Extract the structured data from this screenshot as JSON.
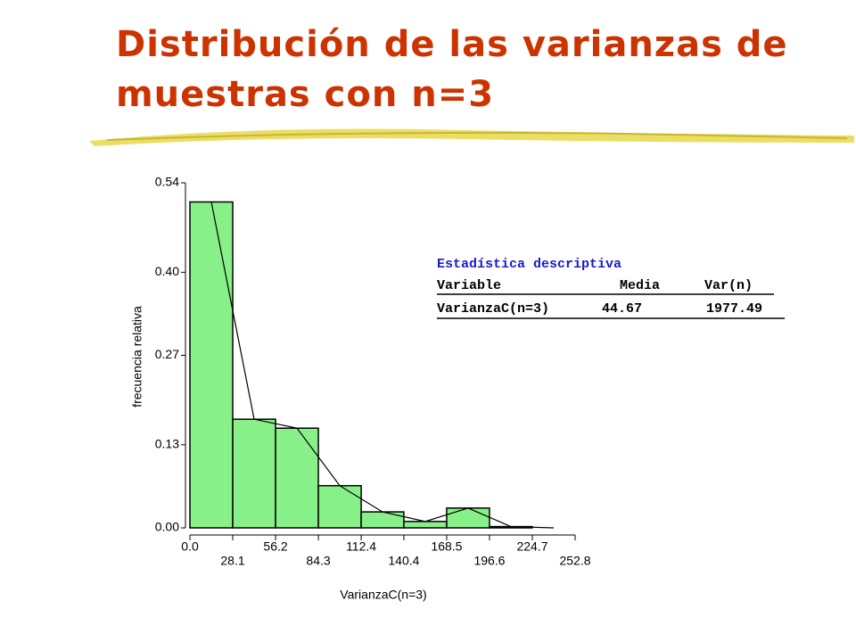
{
  "chart_data": {
    "type": "histogram",
    "title": "Distribución de las varianzas de muestras con n=3",
    "xlabel": "VarianzaC(n=3)",
    "ylabel": "frecuencia relativa",
    "bins": [
      0,
      28.1,
      56.2,
      84.3,
      112.4,
      140.4,
      168.5,
      196.6,
      224.7,
      252.8
    ],
    "values": [
      0.51,
      0.17,
      0.156,
      0.066,
      0.025,
      0.01,
      0.031,
      0.002,
      0
    ],
    "color": "#88f088",
    "xlim": [
      0,
      252.8
    ],
    "ylim": [
      0,
      0.54
    ],
    "xticks": [
      {
        "value": 0,
        "label": "0.0"
      },
      28.1,
      56.2,
      84.3,
      112.4,
      140.4,
      168.5,
      196.6,
      224.7,
      252.8
    ],
    "yticks": [
      {
        "value": 0,
        "label": "0.00"
      },
      0.13,
      0.27,
      {
        "value": 0.4,
        "label": "0.40"
      },
      0.54
    ],
    "stats_table": {
      "title": "Estadística descriptiva",
      "header": [
        "Variable",
        "Media",
        "Var(n)"
      ],
      "rows": [
        [
          "VarianzaC(n=3)",
          "44.67",
          "1977.49"
        ]
      ]
    }
  }
}
